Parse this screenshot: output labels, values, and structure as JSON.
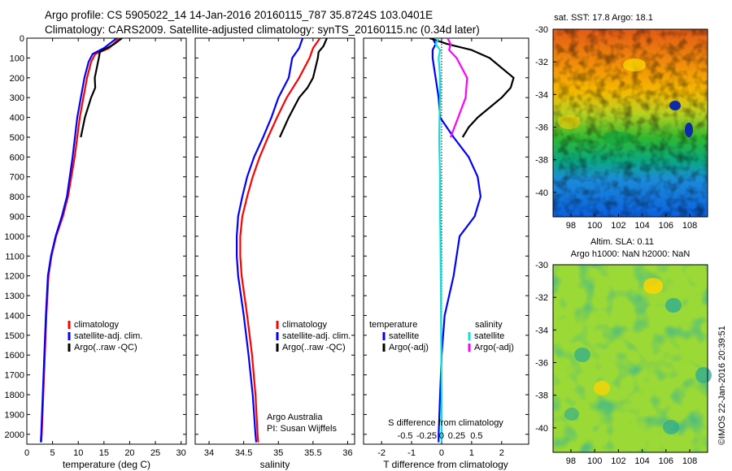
{
  "header": {
    "line1": "Argo profile: CS 5905022_14 14-Jan-2016 20160115_787 35.8724S 103.0401E",
    "line2": "Climatology: CARS2009. Satellite-adjusted climatology: synTS_20160115.nc (0.34d later)"
  },
  "colors": {
    "climatology": "#ff0000",
    "satellite": "#0000ff",
    "argo": "#000000",
    "sal_satellite": "#00e5e5",
    "sal_argo": "#ff00ff"
  },
  "chart_data": [
    {
      "type": "line",
      "xlabel": "temperature (deg C)",
      "xlim": [
        0,
        31
      ],
      "xticks": [
        "0",
        "5",
        "10",
        "15",
        "20",
        "25",
        "30"
      ],
      "ylim": [
        2050,
        0
      ],
      "yticks": [
        "0",
        "100",
        "200",
        "300",
        "400",
        "500",
        "600",
        "700",
        "800",
        "900",
        "1000",
        "1100",
        "1200",
        "1300",
        "1400",
        "1500",
        "1600",
        "1700",
        "1800",
        "1900",
        "2000"
      ],
      "legend": [
        "climatology",
        "satellite-adj. clim.",
        "Argo(..raw -QC)"
      ],
      "series": [
        {
          "name": "climatology",
          "color": "#ff0000",
          "depth": [
            0,
            50,
            80,
            120,
            200,
            300,
            400,
            600,
            800,
            900,
            1000,
            1100,
            1200,
            1400,
            1600,
            1800,
            2000,
            2040
          ],
          "values": [
            18,
            16,
            13.3,
            12.5,
            11.7,
            11,
            10.3,
            9.3,
            8,
            7,
            5.7,
            4.8,
            4.2,
            3.8,
            3.5,
            3.2,
            2.9,
            2.8
          ]
        },
        {
          "name": "satellite-adj. clim.",
          "color": "#0000ff",
          "depth": [
            0,
            50,
            80,
            120,
            200,
            300,
            400,
            600,
            800,
            900,
            1000,
            1100,
            1200,
            1400,
            1600,
            1800,
            2000,
            2040
          ],
          "values": [
            17.5,
            15,
            12.8,
            12,
            11.2,
            10.5,
            9.8,
            8.9,
            7.8,
            6.8,
            5.6,
            4.7,
            4.1,
            3.7,
            3.4,
            3.1,
            2.8,
            2.7
          ]
        },
        {
          "name": "Argo(..raw -QC)",
          "color": "#000000",
          "depth": [
            0,
            30,
            70,
            100,
            200,
            250,
            300,
            400,
            500
          ],
          "values": [
            18.5,
            17,
            14.2,
            14,
            13.2,
            13.3,
            12.5,
            11.3,
            10.5
          ]
        }
      ]
    },
    {
      "type": "line",
      "xlabel": "salinity",
      "xlim": [
        33.8,
        36.1
      ],
      "xticks": [
        "34",
        "34.5",
        "35",
        "35.5",
        "36"
      ],
      "ylim": [
        2050,
        0
      ],
      "legend": [
        "climatology",
        "satellite-adj. clim.",
        "Argo(..raw -QC)"
      ],
      "annotations": [
        "Argo Australia",
        "PI: Susan Wijffels"
      ],
      "series": [
        {
          "name": "climatology",
          "color": "#ff0000",
          "depth": [
            0,
            50,
            100,
            200,
            300,
            400,
            500,
            600,
            700,
            800,
            900,
            1000,
            1100,
            1200,
            1400,
            1600,
            1800,
            2000,
            2040
          ],
          "values": [
            35.6,
            35.5,
            35.45,
            35.3,
            35.12,
            34.98,
            34.85,
            34.73,
            34.63,
            34.55,
            34.48,
            34.45,
            34.45,
            34.47,
            34.55,
            34.62,
            34.67,
            34.7,
            34.71
          ]
        },
        {
          "name": "satellite-adj. clim.",
          "color": "#0000ff",
          "depth": [
            0,
            50,
            100,
            200,
            300,
            400,
            500,
            600,
            700,
            800,
            900,
            1000,
            1100,
            1200,
            1400,
            1600,
            1800,
            2000,
            2040
          ],
          "values": [
            35.35,
            35.3,
            35.2,
            35.15,
            35.0,
            34.9,
            34.78,
            34.65,
            34.55,
            34.48,
            34.42,
            34.4,
            34.4,
            34.42,
            34.5,
            34.57,
            34.63,
            34.67,
            34.68
          ]
        },
        {
          "name": "Argo(..raw -QC)",
          "color": "#000000",
          "depth": [
            0,
            40,
            70,
            100,
            200,
            250,
            300,
            400,
            500
          ],
          "values": [
            35.7,
            35.65,
            35.58,
            35.57,
            35.5,
            35.42,
            35.3,
            35.15,
            35.02
          ]
        }
      ]
    },
    {
      "type": "line",
      "xlabel": "T difference from climatology",
      "xlabel_top": "S difference from climatology",
      "xlim": [
        -2.6,
        2.9
      ],
      "xticks": [
        "-2",
        "-1",
        "0",
        "1",
        "2"
      ],
      "xticks_top": [
        "-0.5",
        "-0.25",
        "0",
        "0.25",
        "0.5"
      ],
      "ylim": [
        2050,
        0
      ],
      "legend_titles": [
        "temperature",
        "salinity"
      ],
      "legend": [
        "satellite",
        "Argo(-adj)",
        "satellite",
        "Argo(-adj)"
      ],
      "series": [
        {
          "name": "temperature satellite",
          "color": "#0000ff",
          "depth": [
            0,
            30,
            60,
            100,
            200,
            300,
            400,
            500,
            600,
            700,
            800,
            900,
            1000,
            1200,
            1400,
            1600,
            1800,
            2000,
            2040
          ],
          "values": [
            -0.3,
            -0.2,
            -0.3,
            -0.3,
            -0.2,
            -0.1,
            -0.05,
            0.4,
            0.9,
            1.2,
            1.3,
            1.1,
            0.6,
            0.4,
            0.1,
            0,
            -0.05,
            -0.1,
            -0.1
          ]
        },
        {
          "name": "temperature Argo(-adj)",
          "color": "#000000",
          "depth": [
            0,
            30,
            60,
            100,
            200,
            250,
            300,
            400,
            450,
            500
          ],
          "values": [
            -0.4,
            0.2,
            1.0,
            1.6,
            2.4,
            2.3,
            2.0,
            1.2,
            0.9,
            0.7
          ]
        },
        {
          "name": "salinity satellite",
          "color": "#00e5e5",
          "depth": [
            0,
            30,
            60,
            100,
            200,
            300,
            400,
            500,
            600,
            700,
            800,
            900,
            1000,
            1200,
            1400,
            1600,
            1800,
            2000,
            2040
          ],
          "values": [
            -0.1,
            -0.2,
            -0.05,
            -0.1,
            -0.05,
            -0.05,
            -0.07,
            -0.08,
            -0.07,
            -0.05,
            -0.05,
            -0.05,
            -0.04,
            -0.03,
            -0.02,
            -0.01,
            0,
            0,
            0
          ]
        },
        {
          "name": "salinity Argo(-adj)",
          "color": "#ff00ff",
          "depth": [
            0,
            30,
            60,
            100,
            200,
            300,
            400,
            500
          ],
          "values": [
            0.2,
            0.3,
            0.25,
            0.5,
            0.85,
            0.8,
            0.55,
            0.3
          ]
        }
      ]
    },
    {
      "type": "heatmap",
      "title": "sat. SST: 17.8 Argo: 18.1",
      "xlim": [
        96.5,
        109.5
      ],
      "ylim": [
        -41.5,
        -30
      ],
      "xticks": [
        "98",
        "100",
        "102",
        "104",
        "106",
        "108"
      ],
      "yticks": [
        "-30",
        "-32",
        "-34",
        "-36",
        "-38",
        "-40"
      ]
    },
    {
      "type": "heatmap",
      "title_lines": [
        "Altim. SLA: 0.11",
        "Argo h1000: NaN h2000: NaN"
      ],
      "xlim": [
        96.5,
        109.5
      ],
      "ylim": [
        -41.5,
        -30
      ],
      "xticks": [
        "98",
        "100",
        "102",
        "104",
        "106",
        "108"
      ],
      "yticks": [
        "-30",
        "-32",
        "-34",
        "-36",
        "-38",
        "-40"
      ],
      "side_label": "©IMOS 22-Jan-2016 20:39:51"
    }
  ]
}
